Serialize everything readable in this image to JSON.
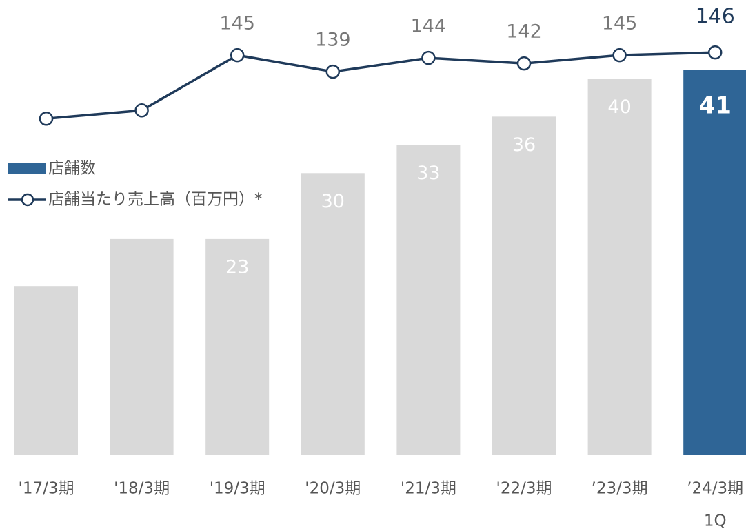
{
  "chart_data": {
    "type": "bar",
    "categories": [
      "'17/3期",
      "'18/3期",
      "'19/3期",
      "'20/3期",
      "'21/3期",
      "'22/3期",
      "’23/3期",
      [
        "’24/3期",
        "1Q"
      ]
    ],
    "ylim": [
      0,
      48.4
    ],
    "y2lim": [
      0,
      165
    ],
    "grid": false,
    "legend": "left",
    "highlight": 7,
    "series": [
      {
        "name": "店舗数",
        "color": "#2f6596",
        "colors": [
          "#d9d9d9",
          "#d9d9d9",
          "#d9d9d9",
          "#d9d9d9",
          "#d9d9d9",
          "#d9d9d9",
          "#d9d9d9",
          "#2f6596"
        ],
        "values": [
          18,
          23,
          23,
          30,
          33,
          36,
          40,
          41
        ],
        "value_labels": [
          null,
          null,
          "23",
          "30",
          "33",
          "36",
          "40",
          "41"
        ]
      },
      {
        "name": "店舗当たり売上高（百万円）*",
        "type": "line",
        "axis": "y2",
        "color": "#1f3a5a",
        "values": [
          122,
          125,
          145,
          139,
          144,
          142,
          145,
          146
        ],
        "value_labels": [
          null,
          null,
          "145",
          "139",
          "144",
          "142",
          "145",
          "146"
        ]
      }
    ]
  }
}
